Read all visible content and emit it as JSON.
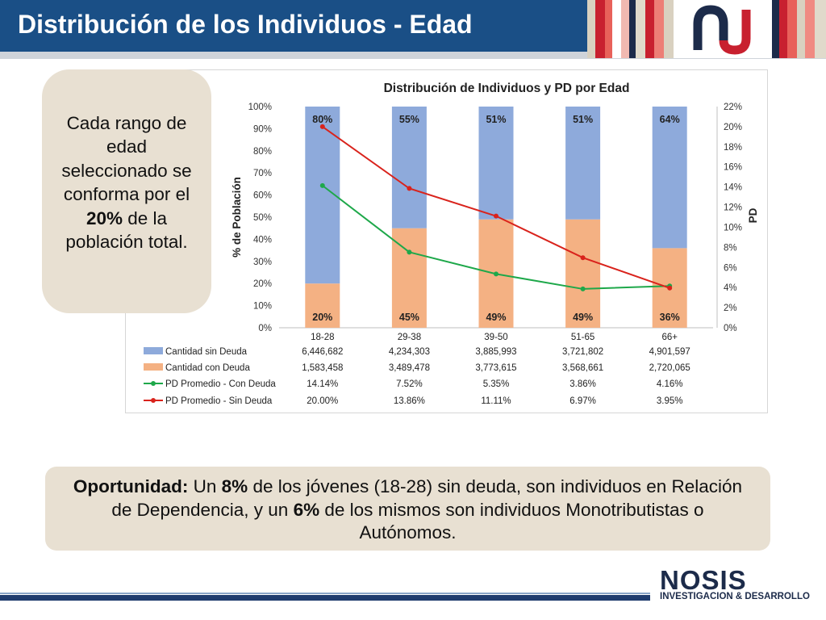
{
  "header": {
    "title": "Distribución de los Individuos - Edad",
    "color": "#1a4f86"
  },
  "callout_left": {
    "text_before": "Cada rango de edad seleccionado se conforma por el ",
    "bold": "20%",
    "text_after": " de la población total."
  },
  "callout_bottom": {
    "lead": "Oportunidad:",
    "t1": " Un ",
    "b1": "8%",
    "t2": " de los jóvenes (18-28) sin deuda, son individuos en Relación de Dependencia, y un ",
    "b2": "6%",
    "t3": " de los mismos son individuos Monotributistas o Autónomos."
  },
  "footer": {
    "brand": "NOSIS",
    "tagline": "INVESTIGACION & DESARROLLO"
  },
  "chart_data": {
    "type": "bar",
    "stacked": true,
    "title": "Distribución de Individuos y PD por Edad",
    "ylabel": "% de Población",
    "y2label": "PD",
    "ylim": [
      0,
      100
    ],
    "y2lim": [
      0,
      22
    ],
    "yticks": [
      "0%",
      "10%",
      "20%",
      "30%",
      "40%",
      "50%",
      "60%",
      "70%",
      "80%",
      "90%",
      "100%"
    ],
    "y2ticks": [
      "0%",
      "2%",
      "4%",
      "6%",
      "8%",
      "10%",
      "12%",
      "14%",
      "16%",
      "18%",
      "20%",
      "22%"
    ],
    "categories": [
      "18-28",
      "29-38",
      "39-50",
      "51-65",
      "66+"
    ],
    "bar_top_labels": [
      "80%",
      "55%",
      "51%",
      "51%",
      "64%"
    ],
    "bar_bottom_labels": [
      "20%",
      "45%",
      "49%",
      "49%",
      "36%"
    ],
    "series": [
      {
        "name": "Cantidad sin Deuda",
        "kind": "bar",
        "color": "#8eaadb",
        "pct": [
          80,
          55,
          51,
          51,
          64
        ],
        "table": [
          "6,446,682",
          "4,234,303",
          "3,885,993",
          "3,721,802",
          "4,901,597"
        ]
      },
      {
        "name": "Cantidad con Deuda",
        "kind": "bar",
        "color": "#f4b183",
        "pct": [
          20,
          45,
          49,
          49,
          36
        ],
        "table": [
          "1,583,458",
          "3,489,478",
          "3,773,615",
          "3,568,661",
          "2,720,065"
        ]
      },
      {
        "name": "PD Promedio - Con Deuda",
        "kind": "line",
        "color": "#1ea84a",
        "values": [
          14.14,
          7.52,
          5.35,
          3.86,
          4.16
        ],
        "table": [
          "14.14%",
          "7.52%",
          "5.35%",
          "3.86%",
          "4.16%"
        ]
      },
      {
        "name": "PD Promedio - Sin Deuda",
        "kind": "line",
        "color": "#d9231c",
        "values": [
          20.0,
          13.86,
          11.11,
          6.97,
          3.95
        ],
        "table": [
          "20.00%",
          "13.86%",
          "11.11%",
          "6.97%",
          "3.95%"
        ]
      }
    ]
  }
}
